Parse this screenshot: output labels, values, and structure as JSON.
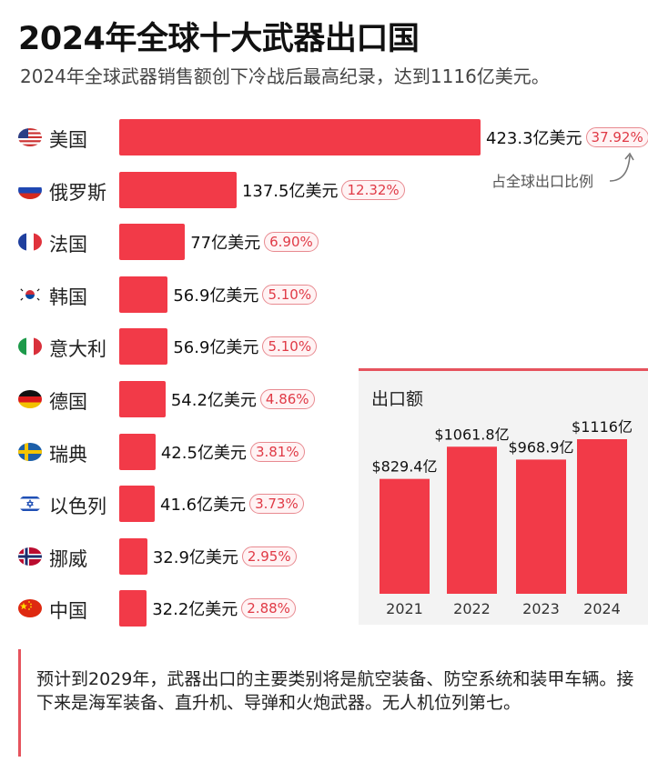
{
  "title": "2024年全球十大武器出口国",
  "subtitle": "2024年全球武器销售额创下冷战后最高纪录，达到1116亿美元。",
  "share_note": "占全球出口比例",
  "footer_text": "预计到2029年，武器出口的主要类别将是航空装备、防空系统和装甲车辆。接下来是海军装备、直升机、导弹和火炮武器。无人机位列第七。",
  "colors": {
    "bar": "#f23a48",
    "accent": "#e6535d",
    "pct_text": "#e03a46"
  },
  "chart_data": [
    {
      "type": "bar",
      "orientation": "horizontal",
      "title": "",
      "unit": "亿美元",
      "categories": [
        "美国",
        "俄罗斯",
        "法国",
        "韩国",
        "意大利",
        "德国",
        "瑞典",
        "以色列",
        "挪威",
        "中国"
      ],
      "flag_icons": [
        "us-flag-icon",
        "russia-flag-icon",
        "france-flag-icon",
        "korea-flag-icon",
        "italy-flag-icon",
        "germany-flag-icon",
        "sweden-flag-icon",
        "israel-flag-icon",
        "norway-flag-icon",
        "china-flag-icon"
      ],
      "values": [
        423.3,
        137.5,
        77,
        56.9,
        56.9,
        54.2,
        42.5,
        41.6,
        32.9,
        32.2
      ],
      "value_labels": [
        "423.3亿美元",
        "137.5亿美元",
        "77亿美元",
        "56.9亿美元",
        "56.9亿美元",
        "54.2亿美元",
        "42.5亿美元",
        "41.6亿美元",
        "32.9亿美元",
        "32.2亿美元"
      ],
      "shares": [
        "37.92%",
        "12.32%",
        "6.90%",
        "5.10%",
        "5.10%",
        "4.86%",
        "3.81%",
        "3.73%",
        "2.95%",
        "2.88%"
      ]
    },
    {
      "type": "bar",
      "title": "出口额",
      "categories": [
        "2021",
        "2022",
        "2023",
        "2024"
      ],
      "values": [
        829.4,
        1061.8,
        968.9,
        1116
      ],
      "value_labels": [
        "$829.4亿",
        "$1061.8亿",
        "$968.9亿",
        "$1116亿"
      ]
    }
  ]
}
